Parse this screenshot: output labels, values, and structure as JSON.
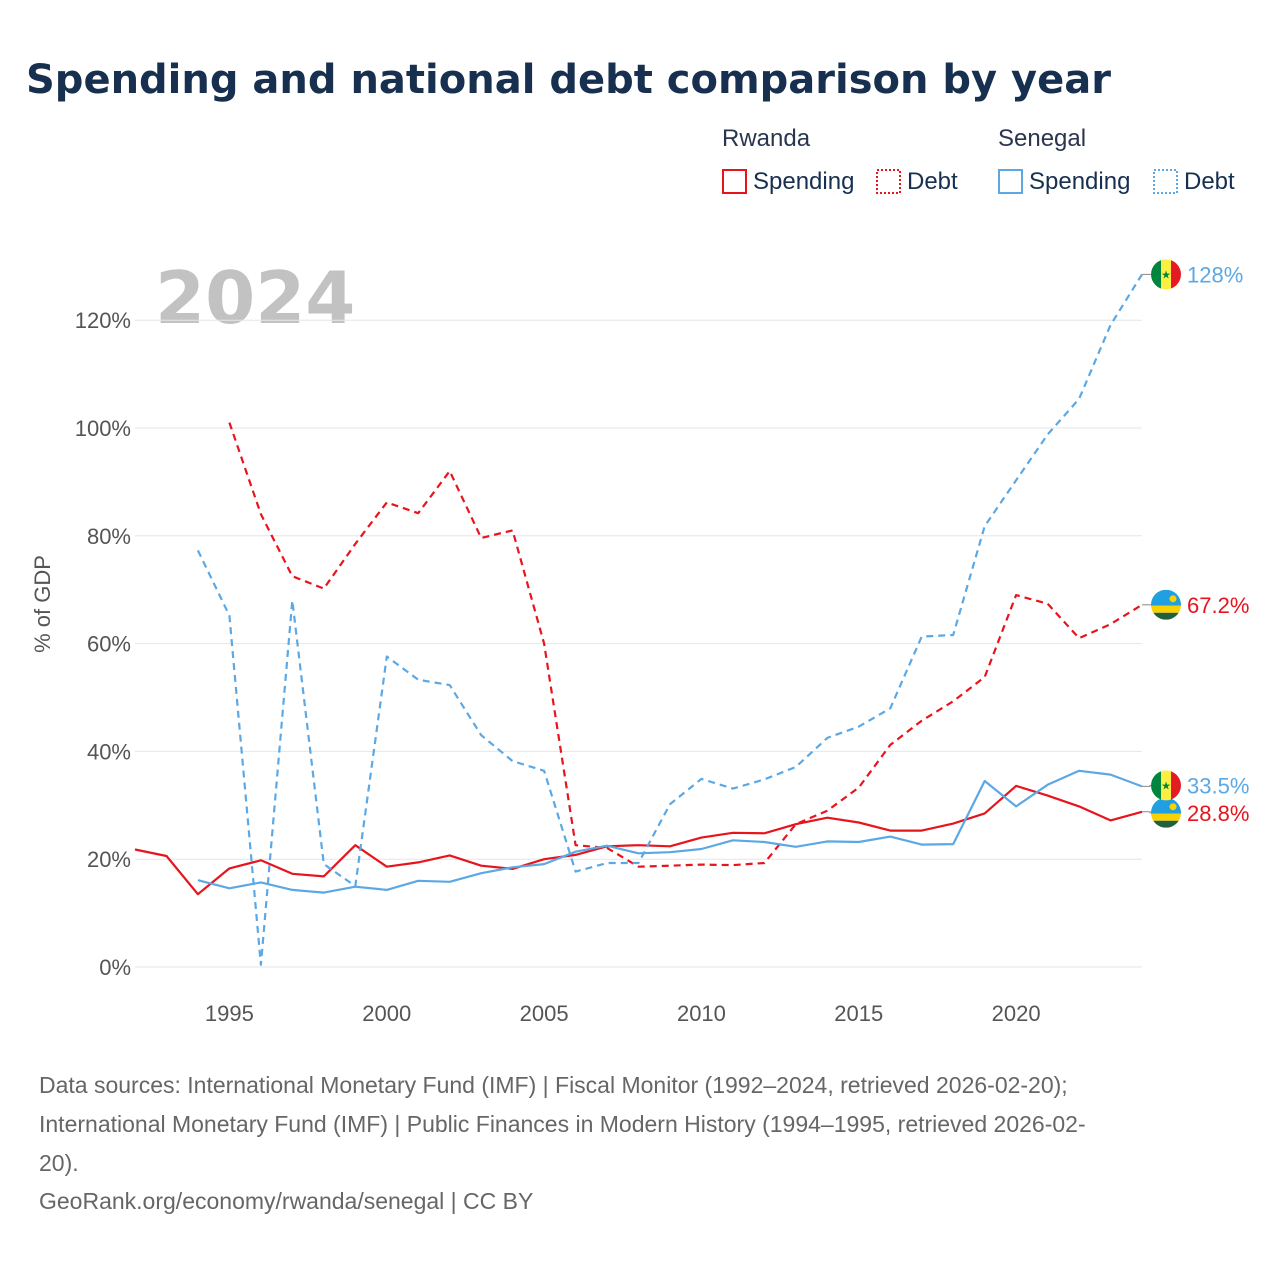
{
  "chart_data": {
    "type": "line",
    "title": "Spending and national debt comparison by year",
    "ylabel": "% of GDP",
    "xlabel": "",
    "xlim": [
      1992,
      2024
    ],
    "ylim": [
      0,
      130
    ],
    "x_ticks": [
      1995,
      2000,
      2005,
      2010,
      2015,
      2020
    ],
    "y_ticks": [
      0,
      20,
      40,
      60,
      80,
      100,
      120
    ],
    "y_tick_labels": [
      "0%",
      "20%",
      "40%",
      "60%",
      "80%",
      "100%",
      "120%"
    ],
    "x_tick_labels": [
      "1995",
      "2000",
      "2005",
      "2010",
      "2015",
      "2020"
    ],
    "grid": true,
    "year_label": "2024",
    "legend": {
      "placement": "top-right",
      "groups": [
        {
          "country": "Rwanda",
          "items": [
            "Spending",
            "Debt"
          ]
        },
        {
          "country": "Senegal",
          "items": [
            "Spending",
            "Debt"
          ]
        }
      ]
    },
    "series": [
      {
        "name": "Rwanda Spending",
        "country": "Rwanda",
        "metric": "Spending",
        "style": "solid",
        "color": "#e8141c",
        "start_year": 1992,
        "values": [
          21.8,
          20.6,
          13.5,
          18.3,
          19.8,
          17.3,
          16.8,
          22.6,
          18.6,
          19.4,
          20.7,
          18.8,
          18.2,
          20.0,
          20.8,
          22.4,
          22.6,
          22.4,
          24.0,
          24.9,
          24.8,
          26.5,
          27.7,
          26.8,
          25.3,
          25.3,
          26.6,
          28.5,
          33.6,
          31.8,
          29.8,
          27.2,
          28.8
        ],
        "end_label": "28.8%"
      },
      {
        "name": "Rwanda Debt",
        "country": "Rwanda",
        "metric": "Debt",
        "style": "dashed",
        "color": "#e8141c",
        "start_year": 1995,
        "values": [
          101.0,
          84.0,
          72.5,
          70.2,
          78.5,
          86.2,
          84.2,
          92.0,
          79.6,
          81.0,
          60.0,
          22.6,
          22.1,
          18.6,
          18.8,
          19.0,
          18.9,
          19.3,
          26.5,
          29.0,
          33.3,
          41.2,
          45.7,
          49.3,
          53.8,
          69.0,
          67.4,
          61.0,
          63.6,
          67.2
        ],
        "end_label": "67.2%"
      },
      {
        "name": "Senegal Spending",
        "country": "Senegal",
        "metric": "Spending",
        "style": "solid",
        "color": "#5ca8e4",
        "start_year": 1994,
        "values": [
          16.1,
          14.6,
          15.7,
          14.3,
          13.8,
          14.9,
          14.3,
          16.0,
          15.8,
          17.4,
          18.5,
          19.1,
          21.4,
          22.5,
          21.1,
          21.3,
          21.9,
          23.5,
          23.2,
          22.3,
          23.3,
          23.2,
          24.2,
          22.7,
          22.8,
          34.5,
          29.8,
          33.8,
          36.4,
          35.7,
          33.5
        ],
        "end_label": "33.5%"
      },
      {
        "name": "Senegal Debt",
        "country": "Senegal",
        "metric": "Debt",
        "style": "dashed",
        "color": "#5ca8e4",
        "start_year": 1994,
        "values": [
          77.3,
          65.2,
          0.4,
          68.0,
          19.1,
          15.0,
          57.6,
          53.3,
          52.3,
          43.0,
          38.2,
          36.4,
          17.7,
          19.3,
          19.3,
          30.2,
          34.9,
          33.1,
          34.8,
          37.1,
          42.5,
          44.6,
          48.0,
          61.3,
          61.6,
          81.8,
          90.3,
          98.8,
          105.4,
          119.1,
          128.5
        ],
        "end_label": "128%"
      }
    ]
  },
  "sources": {
    "line1": "Data sources: International Monetary Fund (IMF) | Fiscal Monitor (1992–2024, retrieved 2026-02-20);",
    "line2": "International Monetary Fund (IMF) | Public Finances in Modern History (1994–1995, retrieved 2026-02-",
    "line3": "20).",
    "credit": "GeoRank.org/economy/rwanda/senegal | CC BY"
  },
  "colors": {
    "rwanda": "#e8141c",
    "senegal": "#5ca8e4",
    "title": "#17304f"
  },
  "flags": {
    "rwanda": {
      "name": "rwanda-flag-icon",
      "colors": [
        "#20a0e0",
        "#fad201",
        "#20603d"
      ],
      "sun": "#fad201"
    },
    "senegal": {
      "name": "senegal-flag-icon",
      "colors": [
        "#00853f",
        "#fdef42",
        "#e31b23"
      ],
      "star": "#00853f"
    }
  }
}
